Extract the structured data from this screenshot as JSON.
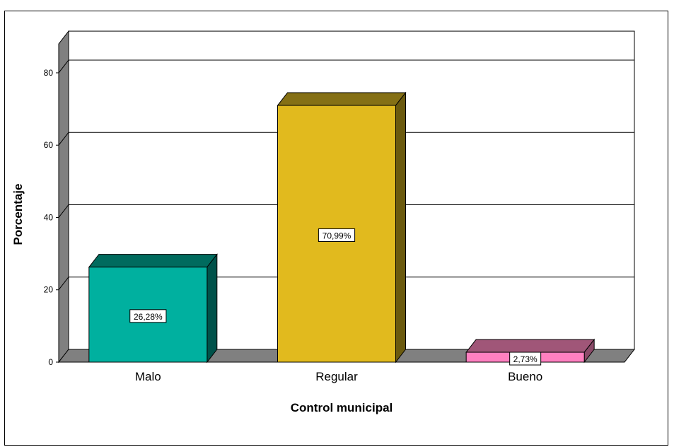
{
  "chart_data": {
    "type": "bar",
    "style": "3d",
    "title": "",
    "xlabel": "Control municipal",
    "ylabel": "Porcentaje",
    "ylim": [
      0,
      88
    ],
    "yticks": [
      0,
      20,
      40,
      60,
      80
    ],
    "grid": true,
    "categories": [
      "Malo",
      "Regular",
      "Bueno"
    ],
    "values": [
      26.28,
      70.99,
      2.73
    ],
    "data_labels": [
      "26,28%",
      "70,99%",
      "2,73%"
    ],
    "colors": [
      {
        "front": "#00B09F",
        "top": "#006B5E",
        "side": "#00524A"
      },
      {
        "front": "#E1BA1E",
        "top": "#857015",
        "side": "#6B5A0F"
      },
      {
        "front": "#FF80C0",
        "top": "#A05678",
        "side": "#8A4A68"
      }
    ],
    "floor_color": "#808080",
    "wall_color": "#808080",
    "grid_color": "#000000"
  }
}
